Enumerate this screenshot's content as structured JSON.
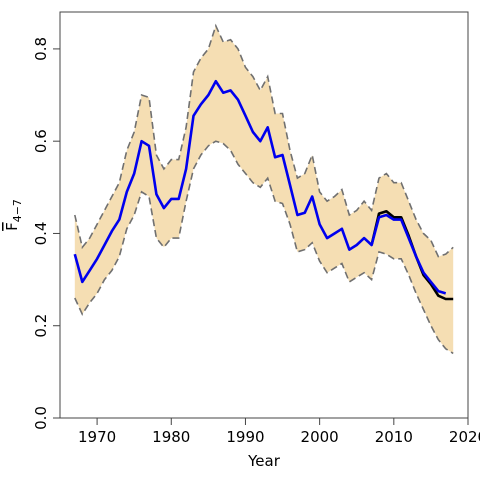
{
  "chart_data": {
    "type": "line",
    "title": "",
    "xlabel": "Year",
    "ylabel_main": "F",
    "ylabel_sub": "4−7",
    "xlim": [
      1965,
      2020
    ],
    "ylim": [
      0.0,
      0.88
    ],
    "xticks": [
      1970,
      1980,
      1990,
      2000,
      2010,
      2020
    ],
    "yticks": [
      0.0,
      0.2,
      0.4,
      0.6,
      0.8
    ],
    "ytick_labels": [
      "0.0",
      "0.2",
      "0.4",
      "0.6",
      "0.8"
    ],
    "grid": false,
    "legend": "none",
    "colors": {
      "band_fill": "#f5deb3",
      "band_edge": "#707070",
      "series_a": "#0000ee",
      "series_b": "#000000",
      "frame": "#444444"
    },
    "band": {
      "x": [
        1967,
        1968,
        1969,
        1970,
        1971,
        1972,
        1973,
        1974,
        1975,
        1976,
        1977,
        1978,
        1979,
        1980,
        1981,
        1982,
        1983,
        1984,
        1985,
        1986,
        1987,
        1988,
        1989,
        1990,
        1991,
        1992,
        1993,
        1994,
        1995,
        1996,
        1997,
        1998,
        1999,
        2000,
        2001,
        2002,
        2003,
        2004,
        2005,
        2006,
        2007,
        2008,
        2009,
        2010,
        2011,
        2012,
        2013,
        2014,
        2015,
        2016,
        2017,
        2018
      ],
      "upper": [
        0.44,
        0.37,
        0.39,
        0.42,
        0.45,
        0.48,
        0.51,
        0.58,
        0.62,
        0.7,
        0.695,
        0.57,
        0.54,
        0.56,
        0.56,
        0.63,
        0.75,
        0.78,
        0.8,
        0.85,
        0.815,
        0.82,
        0.8,
        0.76,
        0.74,
        0.71,
        0.74,
        0.66,
        0.66,
        0.58,
        0.52,
        0.53,
        0.57,
        0.49,
        0.47,
        0.48,
        0.495,
        0.44,
        0.45,
        0.47,
        0.45,
        0.52,
        0.53,
        0.51,
        0.51,
        0.47,
        0.43,
        0.4,
        0.385,
        0.35,
        0.355,
        0.37
      ],
      "lower": [
        0.26,
        0.225,
        0.25,
        0.27,
        0.3,
        0.32,
        0.35,
        0.41,
        0.44,
        0.49,
        0.48,
        0.39,
        0.37,
        0.39,
        0.39,
        0.47,
        0.54,
        0.57,
        0.59,
        0.6,
        0.595,
        0.58,
        0.55,
        0.53,
        0.51,
        0.5,
        0.52,
        0.47,
        0.465,
        0.42,
        0.36,
        0.365,
        0.38,
        0.34,
        0.315,
        0.325,
        0.335,
        0.295,
        0.305,
        0.315,
        0.3,
        0.36,
        0.355,
        0.345,
        0.345,
        0.31,
        0.27,
        0.235,
        0.2,
        0.17,
        0.15,
        0.14
      ]
    },
    "series": [
      {
        "x": [
          1967,
          1968,
          1969,
          1970,
          1971,
          1972,
          1973,
          1974,
          1975,
          1976,
          1977,
          1978,
          1979,
          1980,
          1981,
          1982,
          1983,
          1984,
          1985,
          1986,
          1987,
          1988,
          1989,
          1990,
          1991,
          1992,
          1993,
          1994,
          1995,
          1996,
          1997,
          1998,
          1999,
          2000,
          2001,
          2002,
          2003,
          2004,
          2005,
          2006,
          2007,
          2008,
          2009,
          2010,
          2011,
          2012,
          2013,
          2014,
          2015,
          2016,
          2017
        ],
        "values": [
          0.355,
          0.295,
          0.32,
          0.345,
          0.375,
          0.405,
          0.43,
          0.49,
          0.53,
          0.6,
          0.59,
          0.485,
          0.455,
          0.475,
          0.475,
          0.54,
          0.655,
          0.68,
          0.7,
          0.73,
          0.705,
          0.71,
          0.69,
          0.655,
          0.62,
          0.6,
          0.63,
          0.565,
          0.57,
          0.505,
          0.44,
          0.445,
          0.48,
          0.42,
          0.39,
          0.4,
          0.41,
          0.365,
          0.375,
          0.39,
          0.375,
          0.435,
          0.44,
          0.43,
          0.43,
          0.39,
          0.35,
          0.315,
          0.295,
          0.275,
          0.27
        ]
      },
      {
        "x": [
          2007,
          2008,
          2009,
          2010,
          2011,
          2012,
          2013,
          2014,
          2015,
          2016,
          2017,
          2018
        ],
        "values": [
          0.375,
          0.443,
          0.448,
          0.435,
          0.435,
          0.395,
          0.35,
          0.31,
          0.29,
          0.265,
          0.258,
          0.258
        ]
      }
    ]
  }
}
